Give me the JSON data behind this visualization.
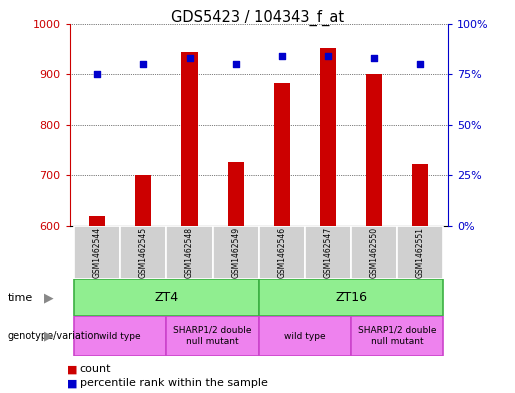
{
  "title": "GDS5423 / 104343_f_at",
  "samples": [
    "GSM1462544",
    "GSM1462545",
    "GSM1462548",
    "GSM1462549",
    "GSM1462546",
    "GSM1462547",
    "GSM1462550",
    "GSM1462551"
  ],
  "counts": [
    620,
    700,
    943,
    727,
    882,
    952,
    900,
    722
  ],
  "percentiles": [
    75,
    80,
    83,
    80,
    84,
    84,
    83,
    80
  ],
  "bar_color": "#cc0000",
  "dot_color": "#0000cc",
  "ylim_left": [
    600,
    1000
  ],
  "ylim_right": [
    0,
    100
  ],
  "yticks_left": [
    600,
    700,
    800,
    900,
    1000
  ],
  "yticks_right": [
    0,
    25,
    50,
    75,
    100
  ],
  "yticklabels_right": [
    "0%",
    "25%",
    "50%",
    "75%",
    "100%"
  ],
  "time_labels": [
    "ZT4",
    "ZT16"
  ],
  "time_color": "#90ee90",
  "time_edge_color": "#3cb043",
  "genotype_labels": [
    "wild type",
    "SHARP1/2 double\nnull mutant",
    "wild type",
    "SHARP1/2 double\nnull mutant"
  ],
  "genotype_color": "#ee82ee",
  "genotype_edge_color": "#cc44cc",
  "sample_bg_color": "#d0d0d0",
  "label_time": "time",
  "label_genotype": "genotype/variation",
  "legend_count": "count",
  "legend_percentile": "percentile rank within the sample",
  "background_color": "#ffffff",
  "left_axis_color": "#cc0000",
  "right_axis_color": "#0000cc"
}
